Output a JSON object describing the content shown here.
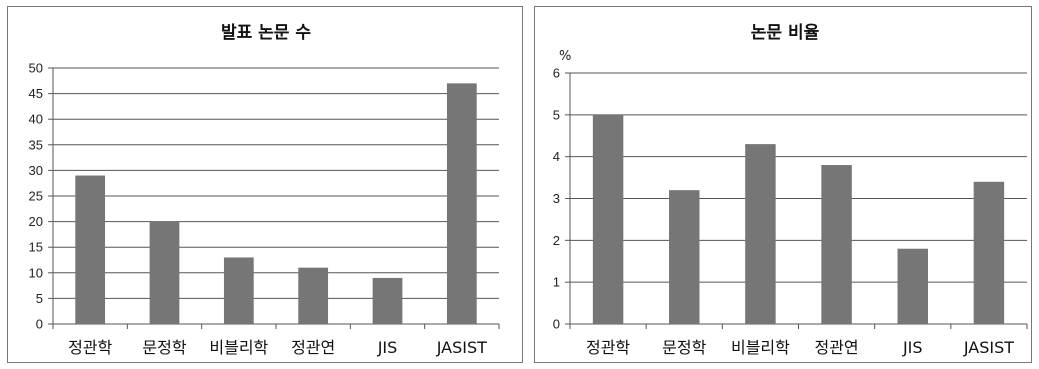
{
  "chart_data": [
    {
      "type": "bar",
      "title": "발표 논문 수",
      "unit_label": "",
      "categories": [
        "정관학",
        "문정학",
        "비블리학",
        "정관연",
        "JIS",
        "JASIST"
      ],
      "values": [
        29,
        20,
        13,
        11,
        9,
        47
      ],
      "ylim": [
        0,
        50
      ],
      "ytick_step": 5,
      "grid": true,
      "bar_color": "#767676"
    },
    {
      "type": "bar",
      "title": "논문 비율",
      "unit_label": "%",
      "categories": [
        "정관학",
        "문정학",
        "비블리학",
        "정관연",
        "JIS",
        "JASIST"
      ],
      "values": [
        5.0,
        3.2,
        4.3,
        3.8,
        1.8,
        3.4
      ],
      "ylim": [
        0,
        6
      ],
      "ytick_step": 1,
      "grid": true,
      "bar_color": "#767676"
    }
  ]
}
